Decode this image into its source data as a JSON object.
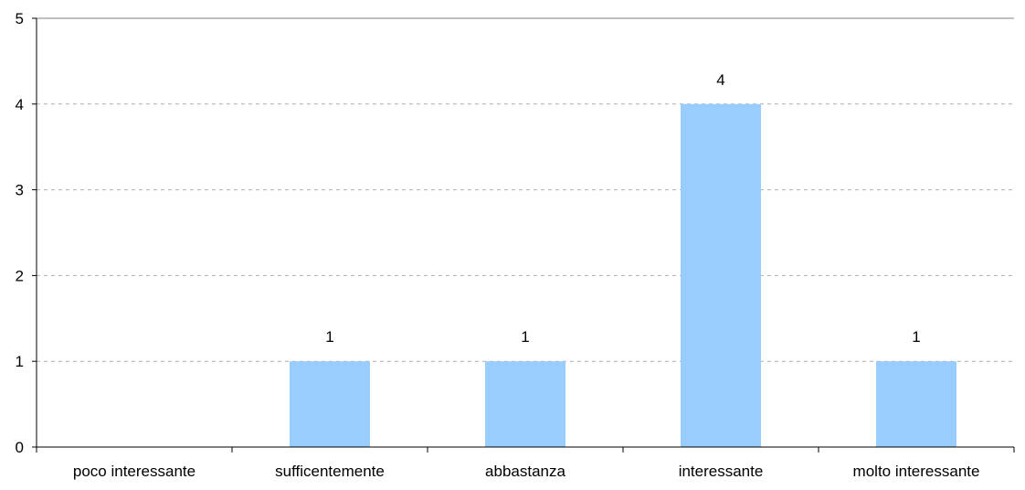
{
  "chart_data": {
    "type": "bar",
    "categories": [
      "poco interessante",
      "sufficentemente",
      "abbastanza",
      "interessante",
      "molto interessante"
    ],
    "values": [
      0,
      1,
      1,
      4,
      1
    ],
    "data_labels": [
      "",
      "1",
      "1",
      "4",
      "1"
    ],
    "yticks": [
      "0",
      "1",
      "2",
      "3",
      "4",
      "5"
    ],
    "ylim": [
      0,
      5
    ],
    "grid": true,
    "bar_color": "#99ccff",
    "title": "",
    "xlabel": "",
    "ylabel": ""
  }
}
